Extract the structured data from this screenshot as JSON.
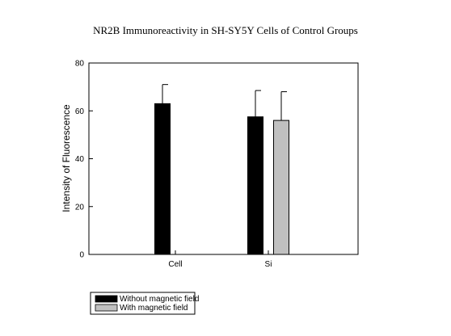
{
  "chart_data": {
    "type": "bar",
    "title": "NR2B Immunoreactivity in SH-SY5Y Cells of Control Groups",
    "xlabel": "",
    "ylabel": "Intensity of Fluorescence",
    "categories": [
      "Cell",
      "Si"
    ],
    "ylim": [
      0,
      80
    ],
    "yticks": [
      0,
      20,
      40,
      60,
      80
    ],
    "grid": false,
    "legend_position": "bottom-left",
    "series": [
      {
        "name": "Without magnetic field",
        "color": "#000000",
        "values": [
          63,
          57.5
        ],
        "errors": [
          8,
          11
        ]
      },
      {
        "name": "With magnetic field",
        "color": "#c0c0c0",
        "values": [
          null,
          56
        ],
        "errors": [
          null,
          12
        ]
      }
    ]
  }
}
